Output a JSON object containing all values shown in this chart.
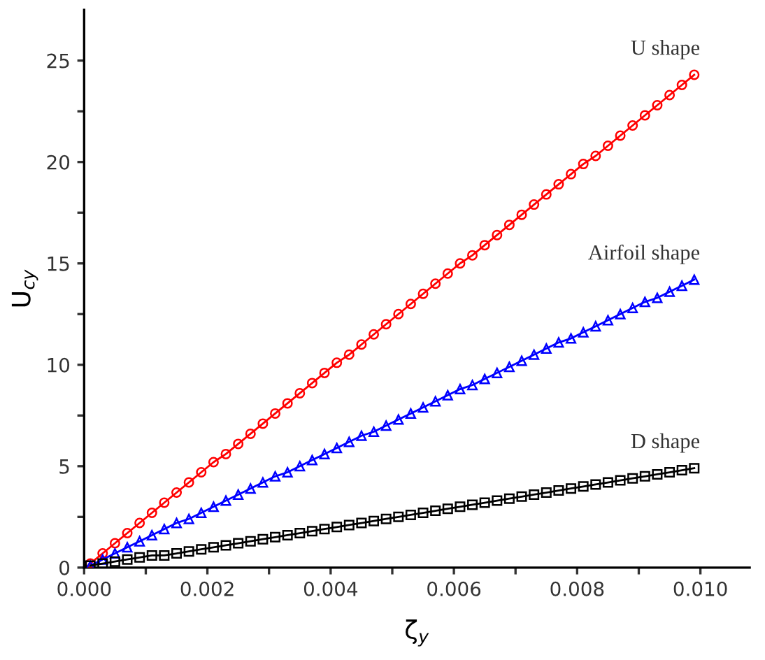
{
  "chart_data": {
    "type": "line",
    "xlabel": "ζ$_{y}$",
    "ylabel": "U$_{cy}$",
    "x": [
      0.0001,
      0.0003,
      0.0005,
      0.0007,
      0.0009,
      0.0011,
      0.0013,
      0.0015,
      0.0017,
      0.0019,
      0.0021,
      0.0023,
      0.0025,
      0.0027,
      0.0029,
      0.0031,
      0.0033,
      0.0035,
      0.0037,
      0.0039,
      0.0041,
      0.0043,
      0.0045,
      0.0047,
      0.0049,
      0.0051,
      0.0053,
      0.0055,
      0.0057,
      0.0059,
      0.0061,
      0.0063,
      0.0065,
      0.0067,
      0.0069,
      0.0071,
      0.0073,
      0.0075,
      0.0077,
      0.0079,
      0.0081,
      0.0083,
      0.0085,
      0.0087,
      0.0089,
      0.0091,
      0.0093,
      0.0095,
      0.0097,
      0.0099
    ],
    "series": [
      {
        "name": "U shape",
        "color": "#ff0000",
        "marker": "circle",
        "values": [
          0.2,
          0.7,
          1.2,
          1.7,
          2.2,
          2.7,
          3.2,
          3.7,
          4.2,
          4.7,
          5.2,
          5.6,
          6.1,
          6.6,
          7.1,
          7.6,
          8.1,
          8.6,
          9.1,
          9.6,
          10.1,
          10.5,
          11.0,
          11.5,
          12.0,
          12.5,
          13.0,
          13.5,
          14.0,
          14.5,
          15.0,
          15.4,
          15.9,
          16.4,
          16.9,
          17.4,
          17.9,
          18.4,
          18.9,
          19.4,
          19.9,
          20.3,
          20.8,
          21.3,
          21.8,
          22.3,
          22.8,
          23.3,
          23.8,
          24.3
        ]
      },
      {
        "name": "Airfoil shape",
        "color": "#0000ff",
        "marker": "triangle",
        "values": [
          0.1,
          0.4,
          0.7,
          1.0,
          1.3,
          1.6,
          1.9,
          2.2,
          2.4,
          2.7,
          3.0,
          3.3,
          3.6,
          3.9,
          4.2,
          4.5,
          4.7,
          5.0,
          5.3,
          5.6,
          5.9,
          6.2,
          6.5,
          6.7,
          7.0,
          7.3,
          7.6,
          7.9,
          8.2,
          8.5,
          8.8,
          9.0,
          9.3,
          9.6,
          9.9,
          10.2,
          10.5,
          10.8,
          11.1,
          11.3,
          11.6,
          11.9,
          12.2,
          12.5,
          12.8,
          13.1,
          13.3,
          13.6,
          13.9,
          14.2
        ]
      },
      {
        "name": "D shape",
        "color": "#000000",
        "marker": "square",
        "values": [
          0.1,
          0.2,
          0.3,
          0.4,
          0.5,
          0.6,
          0.6,
          0.7,
          0.8,
          0.9,
          1.0,
          1.1,
          1.2,
          1.3,
          1.4,
          1.5,
          1.6,
          1.7,
          1.8,
          1.9,
          2.0,
          2.1,
          2.2,
          2.3,
          2.4,
          2.5,
          2.6,
          2.7,
          2.8,
          2.9,
          3.0,
          3.1,
          3.2,
          3.3,
          3.4,
          3.5,
          3.6,
          3.7,
          3.8,
          3.9,
          4.0,
          4.1,
          4.2,
          4.3,
          4.4,
          4.5,
          4.6,
          4.7,
          4.8,
          4.9
        ]
      }
    ],
    "xlim": [
      0,
      0.0108
    ],
    "ylim": [
      0,
      27.5
    ],
    "xticks": [
      {
        "value": 0,
        "label": "0.000"
      },
      {
        "value": 0.001,
        "label": null
      },
      {
        "value": 0.002,
        "label": "0.002"
      },
      {
        "value": 0.003,
        "label": null
      },
      {
        "value": 0.004,
        "label": "0.004"
      },
      {
        "value": 0.005,
        "label": null
      },
      {
        "value": 0.006,
        "label": "0.006"
      },
      {
        "value": 0.007,
        "label": null
      },
      {
        "value": 0.008,
        "label": "0.008"
      },
      {
        "value": 0.009,
        "label": null
      },
      {
        "value": 0.01,
        "label": "0.010"
      }
    ],
    "yticks": [
      0,
      {
        "value": 2.5,
        "label": null
      },
      5,
      {
        "value": 7.5,
        "label": null
      },
      10,
      {
        "value": 12.5,
        "label": null
      },
      15,
      {
        "value": 17.5,
        "label": null
      },
      20,
      {
        "value": 22.5,
        "label": null
      },
      25
    ],
    "grid": false,
    "legend": false,
    "line_style": "solid"
  }
}
